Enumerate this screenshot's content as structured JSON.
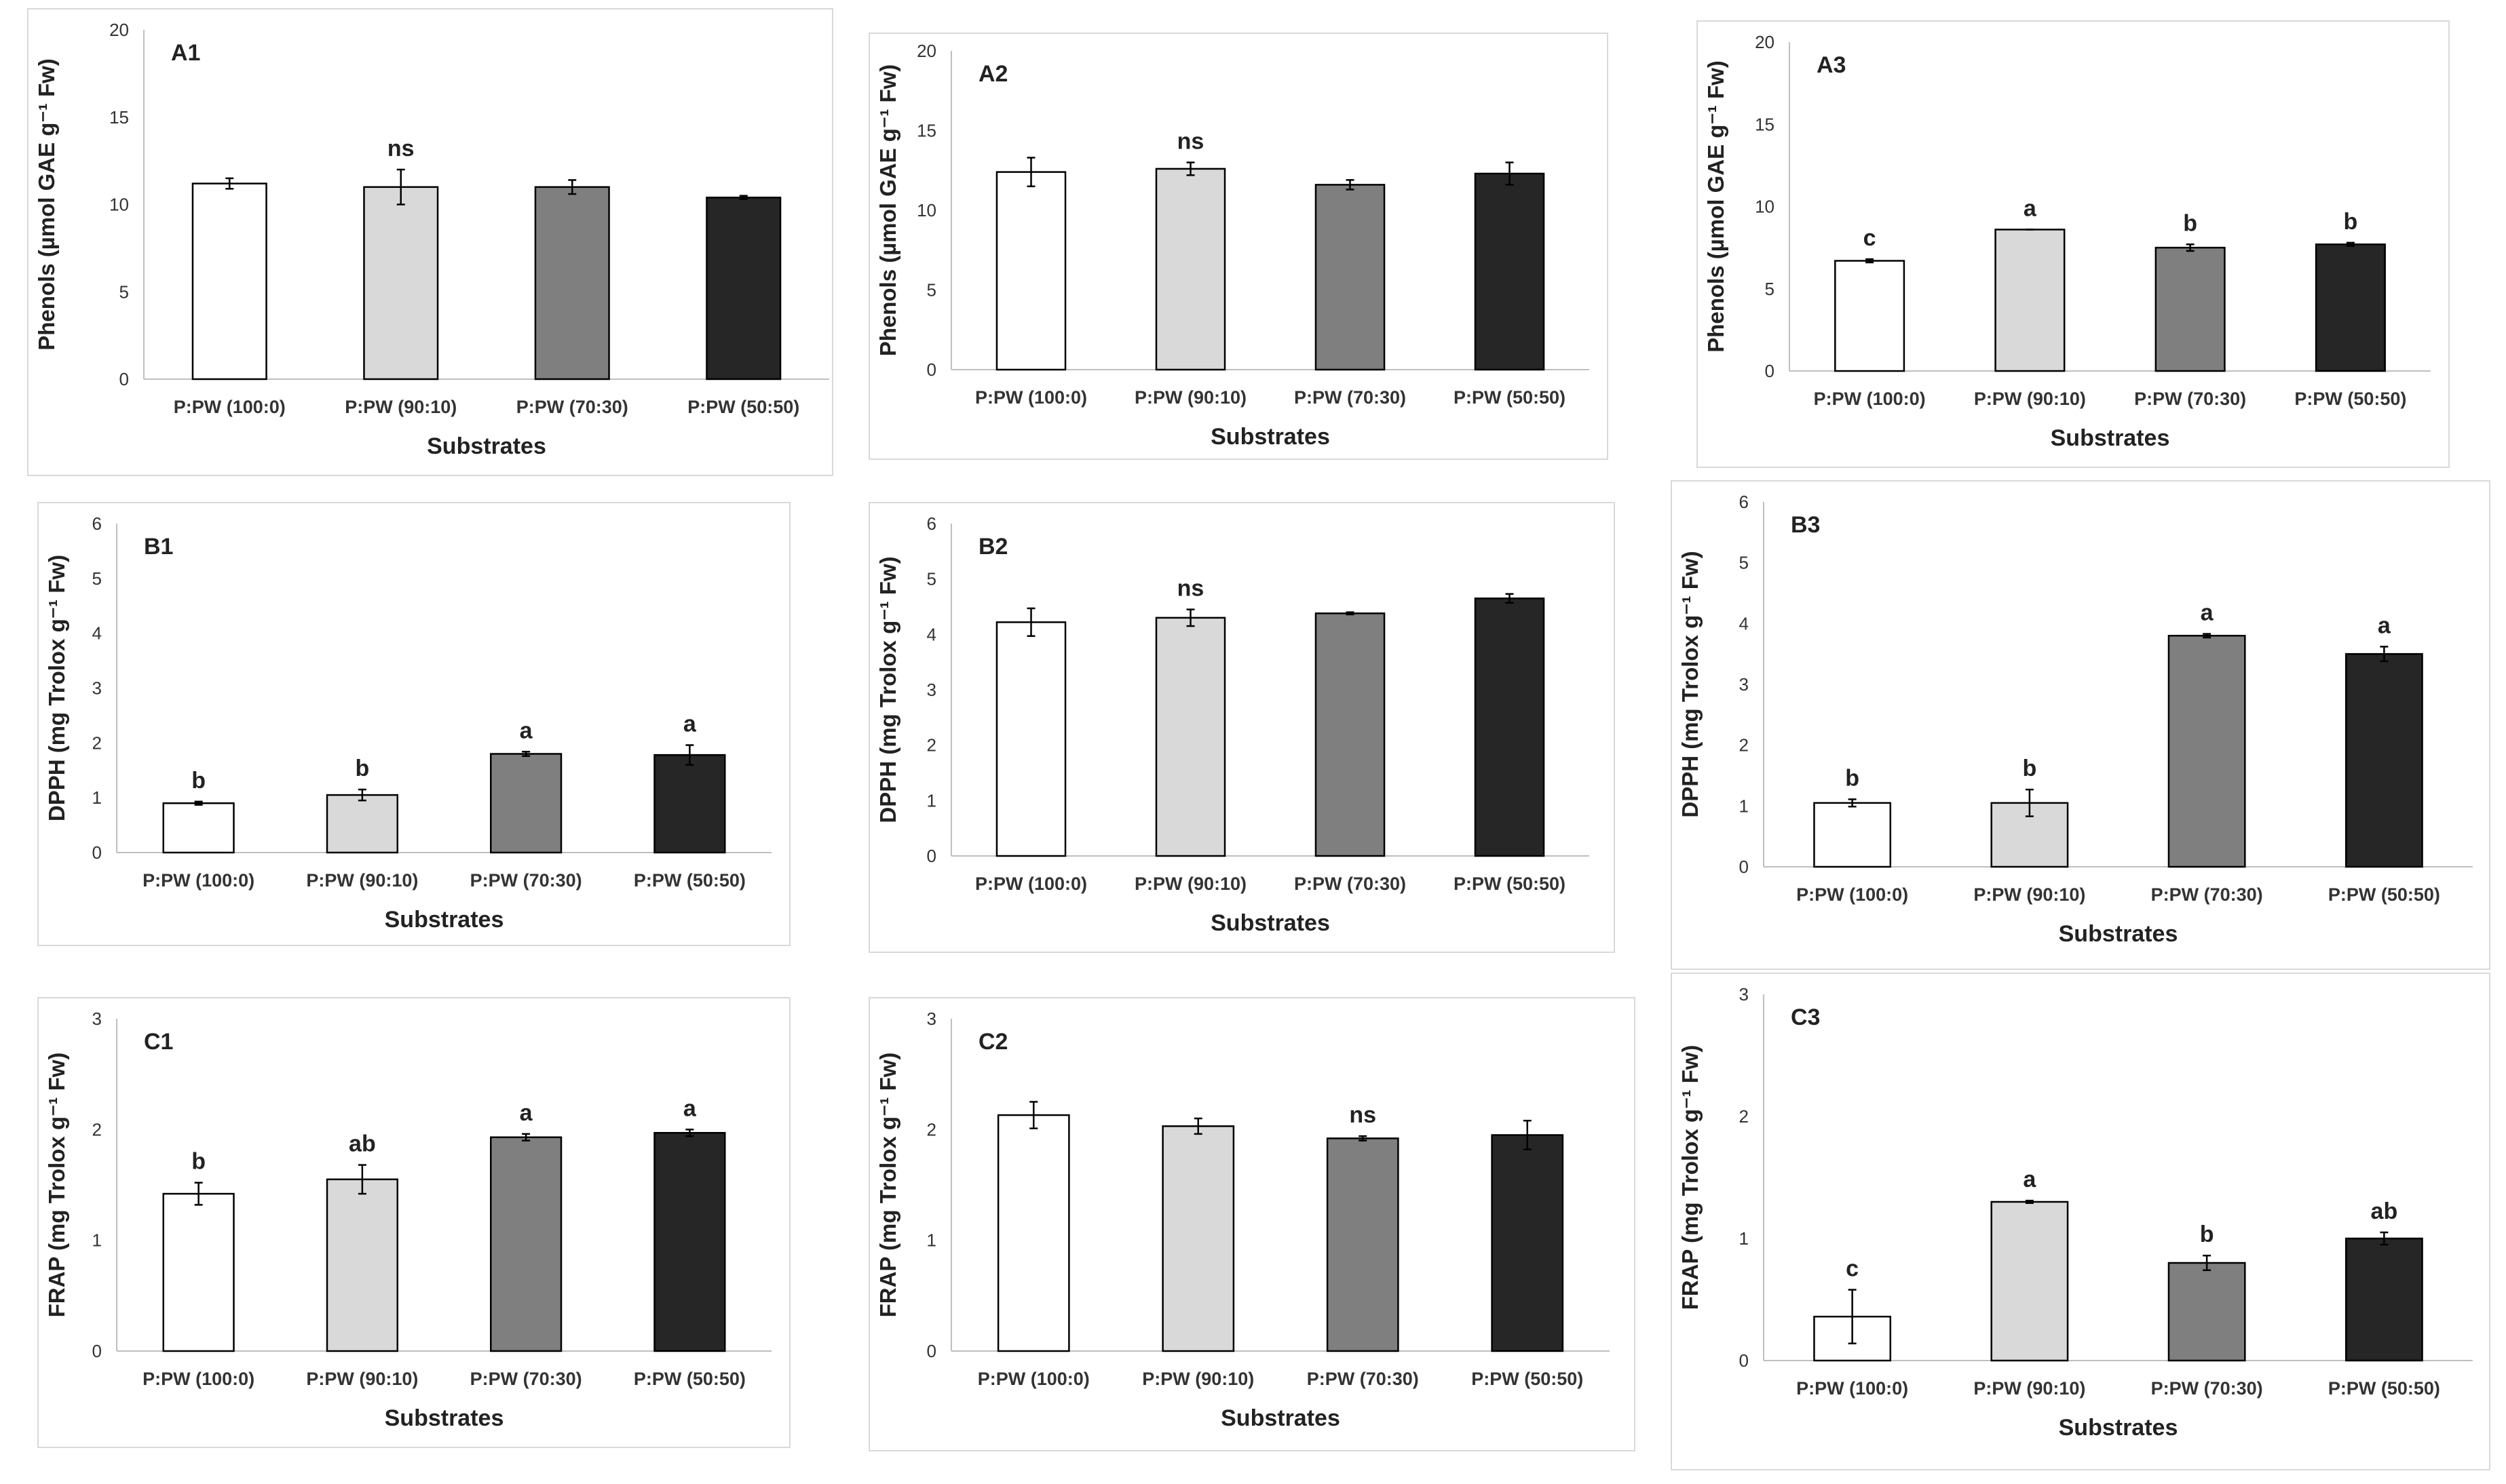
{
  "figure": {
    "ylabel_phenols": "Phenols (µmol GAE g⁻¹ Fw)",
    "ylabel_dpph": "DPPH (mg Trolox g⁻¹ Fw)",
    "ylabel_frap": "FRAP (mg Trolox g⁻¹ Fw)",
    "xlabel": "Substrates",
    "categories": [
      "P:PW (100:0)",
      "P:PW (90:10)",
      "P:PW (70:30)",
      "P:PW (50:50)"
    ],
    "bar_colors": [
      "#ffffff",
      "#d9d9d9",
      "#7f7f7f",
      "#262626"
    ]
  },
  "chart_data": [
    {
      "id": "A1",
      "type": "bar",
      "title": "A1",
      "ylabel": "Phenols (µmol GAE g⁻¹ Fw)",
      "xlabel": "Substrates",
      "categories": [
        "P:PW (100:0)",
        "P:PW (90:10)",
        "P:PW (70:30)",
        "P:PW (50:50)"
      ],
      "values": [
        11.2,
        11.0,
        11.0,
        10.4
      ],
      "errors": [
        0.3,
        1.0,
        0.4,
        0.1
      ],
      "ylim": [
        0,
        20
      ],
      "yticks": [
        0,
        5,
        10,
        15,
        20
      ],
      "annotations": [
        "",
        "ns",
        "",
        ""
      ]
    },
    {
      "id": "A2",
      "type": "bar",
      "title": "A2",
      "ylabel": "Phenols (µmol GAE g⁻¹ Fw)",
      "xlabel": "Substrates",
      "categories": [
        "P:PW (100:0)",
        "P:PW (90:10)",
        "P:PW (70:30)",
        "P:PW (50:50)"
      ],
      "values": [
        12.4,
        12.6,
        11.6,
        12.3
      ],
      "errors": [
        0.9,
        0.4,
        0.3,
        0.7
      ],
      "ylim": [
        0,
        20
      ],
      "yticks": [
        0,
        5,
        10,
        15,
        20
      ],
      "annotations": [
        "",
        "ns",
        "",
        ""
      ]
    },
    {
      "id": "A3",
      "type": "bar",
      "title": "A3",
      "ylabel": "Phenols (µmol GAE g⁻¹ Fw)",
      "xlabel": "Substrates",
      "categories": [
        "P:PW (100:0)",
        "P:PW (90:10)",
        "P:PW (70:30)",
        "P:PW (50:50)"
      ],
      "values": [
        6.7,
        8.6,
        7.5,
        7.7
      ],
      "errors": [
        0.1,
        0.0,
        0.2,
        0.1
      ],
      "ylim": [
        0,
        20
      ],
      "yticks": [
        0,
        5,
        10,
        15,
        20
      ],
      "annotations": [
        "c",
        "a",
        "b",
        "b"
      ]
    },
    {
      "id": "B1",
      "type": "bar",
      "title": "B1",
      "ylabel": "DPPH (mg Trolox g⁻¹ Fw)",
      "xlabel": "Substrates",
      "categories": [
        "P:PW (100:0)",
        "P:PW (90:10)",
        "P:PW (70:30)",
        "P:PW (50:50)"
      ],
      "values": [
        0.9,
        1.05,
        1.8,
        1.78
      ],
      "errors": [
        0.03,
        0.1,
        0.04,
        0.18
      ],
      "ylim": [
        0,
        6
      ],
      "yticks": [
        0,
        1,
        2,
        3,
        4,
        5,
        6
      ],
      "annotations": [
        "b",
        "b",
        "a",
        "a"
      ]
    },
    {
      "id": "B2",
      "type": "bar",
      "title": "B2",
      "ylabel": "DPPH (mg Trolox g⁻¹ Fw)",
      "xlabel": "Substrates",
      "categories": [
        "P:PW (100:0)",
        "P:PW (90:10)",
        "P:PW (70:30)",
        "P:PW (50:50)"
      ],
      "values": [
        4.22,
        4.3,
        4.38,
        4.65
      ],
      "errors": [
        0.25,
        0.15,
        0.02,
        0.08
      ],
      "ylim": [
        0,
        6
      ],
      "yticks": [
        0,
        1,
        2,
        3,
        4,
        5,
        6
      ],
      "annotations": [
        "",
        "ns",
        "",
        ""
      ]
    },
    {
      "id": "B3",
      "type": "bar",
      "title": "B3",
      "ylabel": "DPPH (mg Trolox g⁻¹ Fw)",
      "xlabel": "Substrates",
      "categories": [
        "P:PW (100:0)",
        "P:PW (90:10)",
        "P:PW (70:30)",
        "P:PW (50:50)"
      ],
      "values": [
        1.05,
        1.05,
        3.8,
        3.5
      ],
      "errors": [
        0.06,
        0.22,
        0.03,
        0.12
      ],
      "ylim": [
        0,
        6
      ],
      "yticks": [
        0,
        1,
        2,
        3,
        4,
        5,
        6
      ],
      "annotations": [
        "b",
        "b",
        "a",
        "a"
      ]
    },
    {
      "id": "C1",
      "type": "bar",
      "title": "C1",
      "ylabel": "FRAP (mg Trolox g⁻¹ Fw)",
      "xlabel": "Substrates",
      "categories": [
        "P:PW (100:0)",
        "P:PW (90:10)",
        "P:PW (70:30)",
        "P:PW (50:50)"
      ],
      "values": [
        1.42,
        1.55,
        1.93,
        1.97
      ],
      "errors": [
        0.1,
        0.13,
        0.03,
        0.03
      ],
      "ylim": [
        0,
        3
      ],
      "yticks": [
        0,
        1,
        2,
        3
      ],
      "annotations": [
        "b",
        "ab",
        "a",
        "a"
      ]
    },
    {
      "id": "C2",
      "type": "bar",
      "title": "C2",
      "ylabel": "FRAP (mg Trolox g⁻¹ Fw)",
      "xlabel": "Substrates",
      "categories": [
        "P:PW (100:0)",
        "P:PW (90:10)",
        "P:PW (70:30)",
        "P:PW (50:50)"
      ],
      "values": [
        2.13,
        2.03,
        1.92,
        1.95
      ],
      "errors": [
        0.12,
        0.07,
        0.02,
        0.13
      ],
      "ylim": [
        0,
        3
      ],
      "yticks": [
        0,
        1,
        2,
        3
      ],
      "annotations": [
        "",
        "",
        "ns",
        ""
      ]
    },
    {
      "id": "C3",
      "type": "bar",
      "title": "C3",
      "ylabel": "FRAP (mg Trolox g⁻¹ Fw)",
      "xlabel": "Substrates",
      "categories": [
        "P:PW (100:0)",
        "P:PW (90:10)",
        "P:PW (70:30)",
        "P:PW (50:50)"
      ],
      "values": [
        0.36,
        1.3,
        0.8,
        1.0
      ],
      "errors": [
        0.22,
        0.01,
        0.06,
        0.05
      ],
      "ylim": [
        0,
        3
      ],
      "yticks": [
        0,
        1,
        2,
        3
      ],
      "annotations": [
        "c",
        "a",
        "b",
        "ab"
      ]
    }
  ]
}
